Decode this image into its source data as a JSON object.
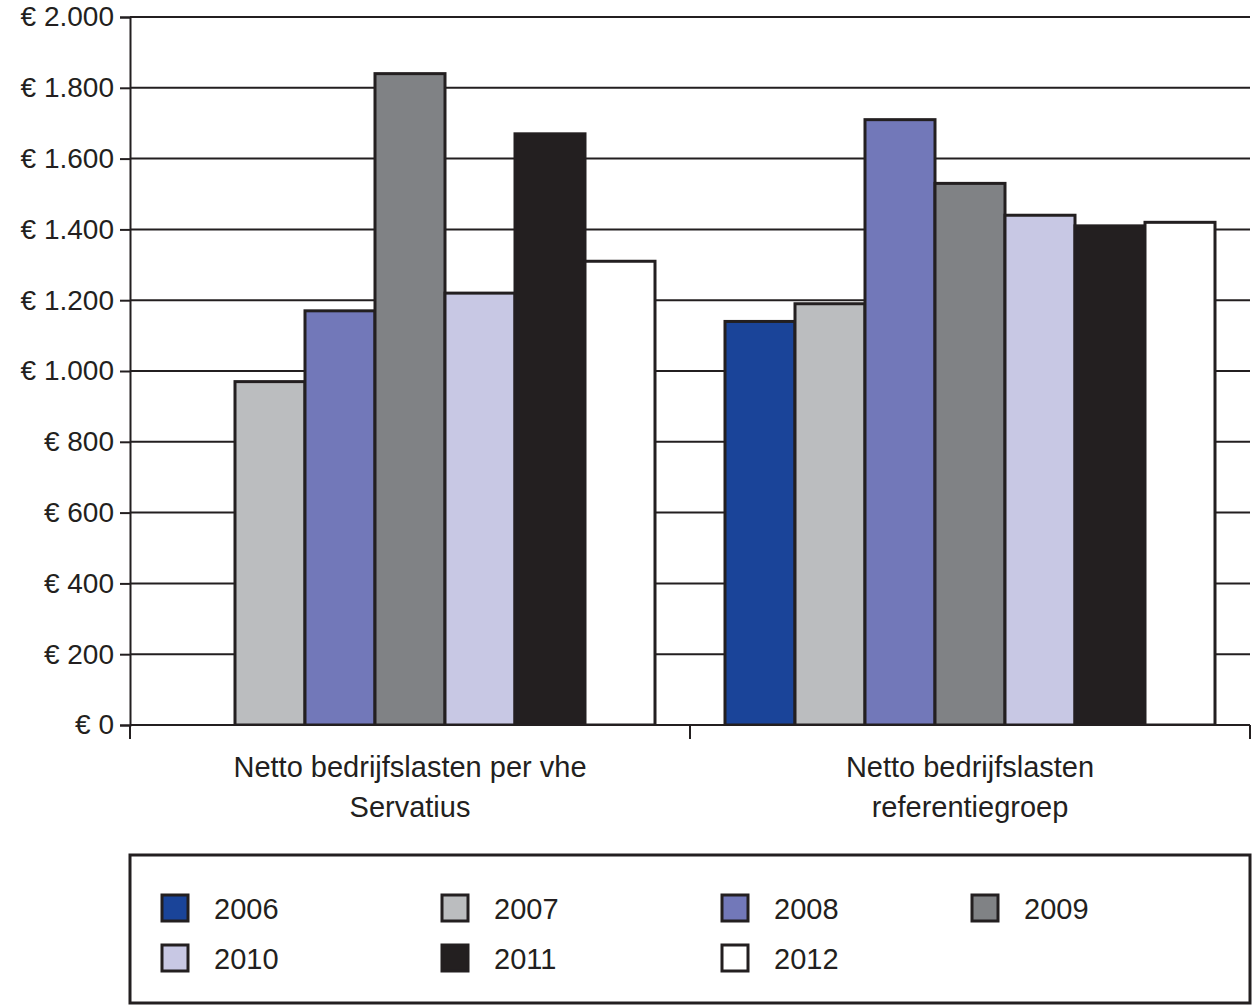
{
  "chart_data": {
    "type": "bar",
    "categories": [
      "Netto bedrijfslasten per vhe Servatius",
      "Netto bedrijfslasten referentiegroep"
    ],
    "series": [
      {
        "name": "2006",
        "color": "#1a4499",
        "values": [
          null,
          1140
        ]
      },
      {
        "name": "2007",
        "color": "#bbbdbf",
        "values": [
          970,
          1190
        ]
      },
      {
        "name": "2008",
        "color": "#7278b9",
        "values": [
          1170,
          1710
        ]
      },
      {
        "name": "2009",
        "color": "#808285",
        "values": [
          1840,
          1530
        ]
      },
      {
        "name": "2010",
        "color": "#c8c8e4",
        "values": [
          1220,
          1440
        ]
      },
      {
        "name": "2011",
        "color": "#231f20",
        "values": [
          1670,
          1410
        ]
      },
      {
        "name": "2012",
        "color": "#ffffff",
        "values": [
          1310,
          1420
        ]
      }
    ],
    "ylim": [
      0,
      2000
    ],
    "yticks": [
      {
        "value": 0,
        "label": "€ 0"
      },
      {
        "value": 200,
        "label": "€ 200"
      },
      {
        "value": 400,
        "label": "€ 400"
      },
      {
        "value": 600,
        "label": "€ 600"
      },
      {
        "value": 800,
        "label": "€ 800"
      },
      {
        "value": 1000,
        "label": "€ 1.000"
      },
      {
        "value": 1200,
        "label": "€ 1.200"
      },
      {
        "value": 1400,
        "label": "€ 1.400"
      },
      {
        "value": 1600,
        "label": "€ 1.600"
      },
      {
        "value": 1800,
        "label": "€ 1.800"
      },
      {
        "value": 2000,
        "label": "€ 2.000"
      }
    ],
    "grid": true,
    "legend": "bottom"
  }
}
